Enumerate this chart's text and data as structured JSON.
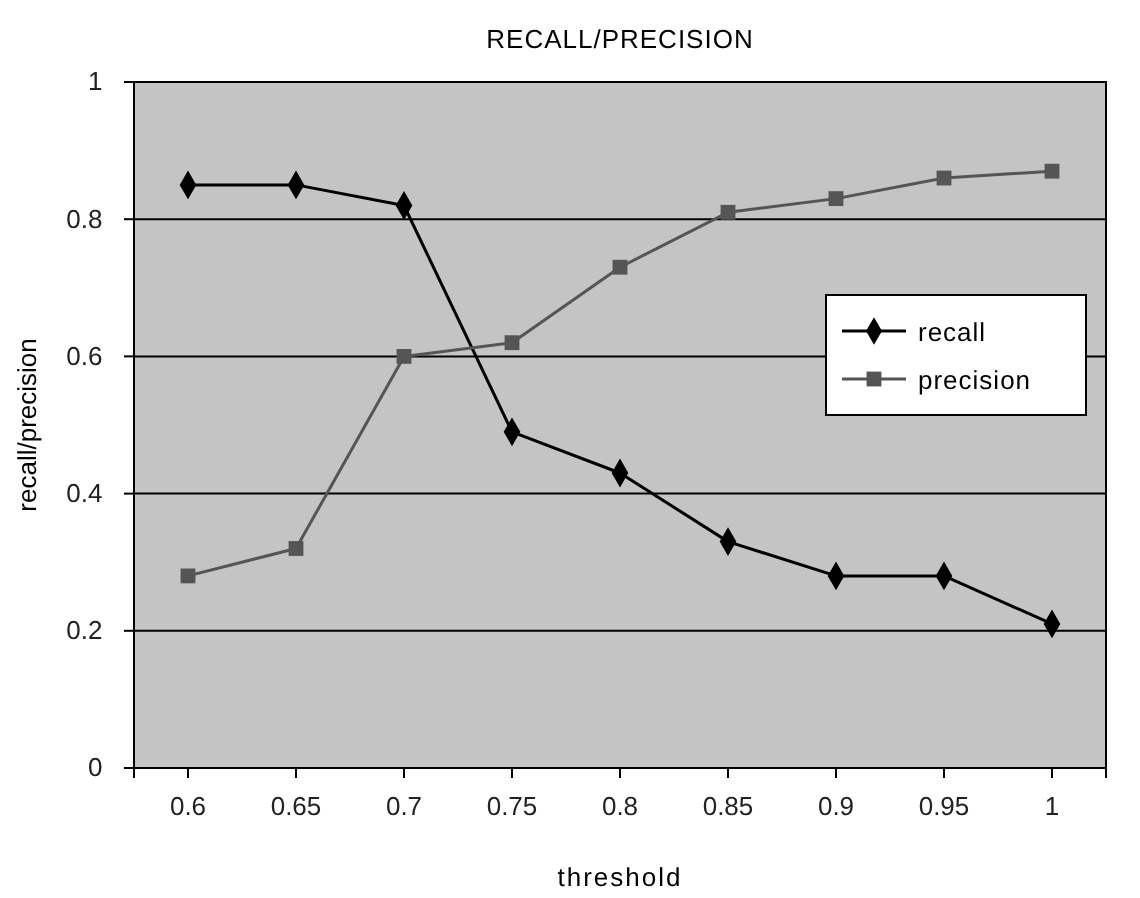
{
  "chart_data": {
    "type": "line",
    "title": "RECALL/PRECISION",
    "xlabel": "threshold",
    "ylabel": "recall/precision",
    "categories": [
      "0.6",
      "0.65",
      "0.7",
      "0.75",
      "0.8",
      "0.85",
      "0.9",
      "0.95",
      "1"
    ],
    "series": [
      {
        "name": "recall",
        "color": "#000000",
        "marker": "diamond",
        "values": [
          0.85,
          0.85,
          0.82,
          0.49,
          0.43,
          0.33,
          0.28,
          0.28,
          0.21
        ]
      },
      {
        "name": "precision",
        "color": "#555555",
        "marker": "square",
        "values": [
          0.28,
          0.32,
          0.6,
          0.62,
          0.73,
          0.81,
          0.83,
          0.86,
          0.87
        ]
      }
    ],
    "ylim": [
      0,
      1
    ],
    "yticks": [
      0,
      0.2,
      0.4,
      0.6,
      0.8,
      1
    ],
    "grid": "y",
    "legend": "right",
    "line_style": "solid"
  }
}
